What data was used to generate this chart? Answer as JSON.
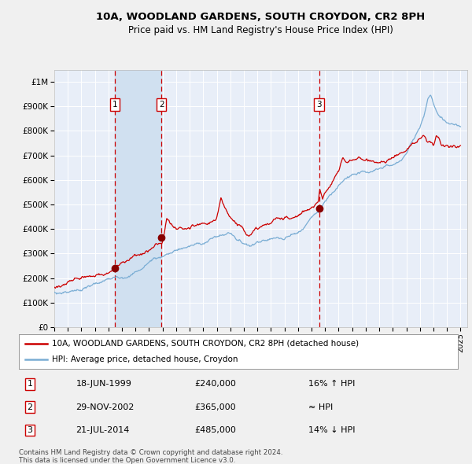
{
  "title_line1": "10A, WOODLAND GARDENS, SOUTH CROYDON, CR2 8PH",
  "title_line2": "Price paid vs. HM Land Registry's House Price Index (HPI)",
  "ylabel_ticks": [
    "£0",
    "£100K",
    "£200K",
    "£300K",
    "£400K",
    "£500K",
    "£600K",
    "£700K",
    "£800K",
    "£900K",
    "£1M"
  ],
  "ylabel_values": [
    0,
    100000,
    200000,
    300000,
    400000,
    500000,
    600000,
    700000,
    800000,
    900000,
    1000000
  ],
  "ylim": [
    0,
    1050000
  ],
  "xlim_start": 1995.0,
  "xlim_end": 2025.5,
  "xtick_years": [
    1995,
    1996,
    1997,
    1998,
    1999,
    2000,
    2001,
    2002,
    2003,
    2004,
    2005,
    2006,
    2007,
    2008,
    2009,
    2010,
    2011,
    2012,
    2013,
    2014,
    2015,
    2016,
    2017,
    2018,
    2019,
    2020,
    2021,
    2022,
    2023,
    2024,
    2025
  ],
  "sale_dates": [
    1999.46,
    2002.91,
    2014.55
  ],
  "sale_prices": [
    240000,
    365000,
    485000
  ],
  "sale_labels": [
    "1",
    "2",
    "3"
  ],
  "sale_annotations": [
    {
      "label": "1",
      "date": "18-JUN-1999",
      "price": "£240,000",
      "note": "16% ↑ HPI"
    },
    {
      "label": "2",
      "date": "29-NOV-2002",
      "price": "£365,000",
      "note": "≈ HPI"
    },
    {
      "label": "3",
      "date": "21-JUL-2014",
      "price": "£485,000",
      "note": "14% ↓ HPI"
    }
  ],
  "fig_bg_color": "#f0f0f0",
  "plot_bg_color": "#e8eef8",
  "grid_color": "#ffffff",
  "line_red_color": "#cc0000",
  "line_blue_color": "#7aadd4",
  "sale_marker_color": "#880000",
  "vline_color": "#cc0000",
  "shade_color": "#d0e0f0",
  "legend_line1": "10A, WOODLAND GARDENS, SOUTH CROYDON, CR2 8PH (detached house)",
  "legend_line2": "HPI: Average price, detached house, Croydon",
  "footer_line1": "Contains HM Land Registry data © Crown copyright and database right 2024.",
  "footer_line2": "This data is licensed under the Open Government Licence v3.0."
}
